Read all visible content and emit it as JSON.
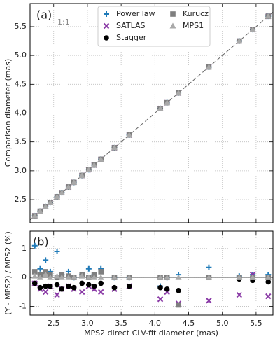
{
  "chart_data": [
    {
      "type": "scatter",
      "ylabel": "Comparison diameter (mas)",
      "annotations": [
        "(a)",
        "1:1"
      ],
      "identity_line": true,
      "grid": true,
      "legend": "upper center",
      "xlim": [
        2.15,
        5.75
      ],
      "ylim": [
        2.1,
        5.9
      ],
      "xticks": [
        2.5,
        {
          "value": 3,
          "label": "3.0"
        },
        3.5,
        {
          "value": 4,
          "label": "4.0"
        },
        4.5,
        {
          "value": 5,
          "label": "5.0"
        },
        5.5
      ],
      "yticks": [
        2.5,
        {
          "value": 3,
          "label": "3.0"
        },
        3.5,
        {
          "value": 4,
          "label": "4.0"
        },
        4.5,
        {
          "value": 5,
          "label": "5.0"
        },
        5.5
      ],
      "x": [
        2.22,
        2.3,
        2.38,
        2.45,
        2.55,
        2.62,
        2.72,
        2.8,
        2.92,
        3.02,
        3.1,
        3.2,
        3.4,
        3.62,
        4.08,
        4.18,
        4.35,
        4.8,
        5.25,
        5.45,
        5.68
      ],
      "series": [
        {
          "name": "Power law",
          "color": "#1f7ab8",
          "marker": "plus",
          "values": [
            2.22,
            2.3,
            2.38,
            2.45,
            2.55,
            2.62,
            2.72,
            2.8,
            2.92,
            3.02,
            3.1,
            3.2,
            3.4,
            3.62,
            4.08,
            4.18,
            4.35,
            4.8,
            5.25,
            5.45,
            5.68
          ]
        },
        {
          "name": "SATLAS",
          "color": "#8a3aa6",
          "marker": "x",
          "values": [
            2.22,
            2.3,
            2.38,
            2.45,
            2.55,
            2.62,
            2.72,
            2.8,
            2.92,
            3.02,
            3.1,
            3.2,
            3.4,
            3.62,
            4.08,
            4.18,
            4.35,
            4.8,
            5.25,
            5.45,
            5.68
          ]
        },
        {
          "name": "Stagger",
          "color": "#000000",
          "marker": "circle",
          "values": [
            2.22,
            2.3,
            2.38,
            2.45,
            2.55,
            2.62,
            2.72,
            2.8,
            2.92,
            3.02,
            3.1,
            3.2,
            3.4,
            3.62,
            4.08,
            4.18,
            4.35,
            4.8,
            5.25,
            5.45,
            5.68
          ]
        },
        {
          "name": "Kurucz",
          "color": "#7f7f7f",
          "marker": "square",
          "values": [
            2.22,
            2.3,
            2.38,
            2.45,
            2.55,
            2.62,
            2.72,
            2.8,
            2.92,
            3.02,
            3.1,
            3.2,
            3.4,
            3.62,
            4.08,
            4.18,
            4.35,
            4.8,
            5.25,
            5.45,
            5.68
          ]
        },
        {
          "name": "MPS1",
          "color": "#a9a9a9",
          "marker": "triangle",
          "values": [
            2.22,
            2.3,
            2.38,
            2.45,
            2.55,
            2.62,
            2.72,
            2.8,
            2.92,
            3.02,
            3.1,
            3.2,
            3.4,
            3.62,
            4.08,
            4.18,
            4.35,
            4.8,
            5.25,
            5.45,
            5.68
          ]
        }
      ]
    },
    {
      "type": "scatter",
      "xlabel": "MPS2 direct CLV-fit diameter (mas)",
      "ylabel": "(Y - MPS2) / MPS2 (%)",
      "annotations": [
        "(b)"
      ],
      "zero_line": true,
      "grid": true,
      "xlim": [
        2.15,
        5.75
      ],
      "ylim": [
        -1.3,
        1.6
      ],
      "xticks": [
        2.5,
        {
          "value": 3,
          "label": "3.0"
        },
        3.5,
        {
          "value": 4,
          "label": "4.0"
        },
        4.5,
        {
          "value": 5,
          "label": "5.0"
        },
        5.5
      ],
      "yticks": [
        -1,
        0,
        1
      ],
      "x": [
        2.22,
        2.3,
        2.38,
        2.45,
        2.55,
        2.62,
        2.72,
        2.8,
        2.92,
        3.02,
        3.1,
        3.2,
        3.4,
        3.62,
        4.08,
        4.18,
        4.35,
        4.8,
        5.25,
        5.45,
        5.68
      ],
      "series": [
        {
          "color": "#1f7ab8",
          "marker": "plus",
          "values": [
            1.1,
            0.3,
            0.6,
            0.2,
            0.9,
            0.1,
            0.2,
            0.0,
            0.1,
            0.3,
            0.1,
            0.3,
            0.0,
            0.0,
            -0.3,
            0.0,
            0.1,
            0.35,
            0.05,
            0.1,
            0.1
          ]
        },
        {
          "color": "#8a3aa6",
          "marker": "x",
          "values": [
            -0.2,
            -0.4,
            -0.5,
            -0.3,
            -0.6,
            -0.4,
            -0.3,
            -0.4,
            -0.5,
            -0.3,
            -0.4,
            -0.5,
            -0.4,
            -0.3,
            -0.75,
            -0.5,
            -0.9,
            -0.8,
            -0.6,
            0.1,
            -0.65
          ]
        },
        {
          "color": "#000000",
          "marker": "circle",
          "values": [
            -0.2,
            -0.35,
            -0.3,
            -0.3,
            -0.25,
            -0.4,
            -0.3,
            -0.35,
            -0.2,
            -0.25,
            -0.3,
            -0.2,
            -0.35,
            -0.3,
            -0.35,
            -0.4,
            -0.45,
            0.0,
            -0.05,
            -0.1,
            -0.15
          ]
        },
        {
          "color": "#7f7f7f",
          "marker": "square",
          "values": [
            0.2,
            0.1,
            0.2,
            0.1,
            0.0,
            0.1,
            0.05,
            0.0,
            0.1,
            0.0,
            0.1,
            0.2,
            0.0,
            0.0,
            0.0,
            0.0,
            -0.95,
            0.0,
            0.0,
            0.0,
            0.0
          ]
        },
        {
          "color": "#a9a9a9",
          "marker": "triangle",
          "values": [
            0.05,
            0.0,
            0.1,
            0.0,
            0.05,
            0.0,
            0.0,
            0.0,
            0.05,
            0.0,
            0.0,
            0.0,
            0.0,
            0.0,
            0.0,
            0.0,
            0.0,
            0.0,
            0.0,
            0.0,
            0.0
          ]
        }
      ]
    }
  ]
}
